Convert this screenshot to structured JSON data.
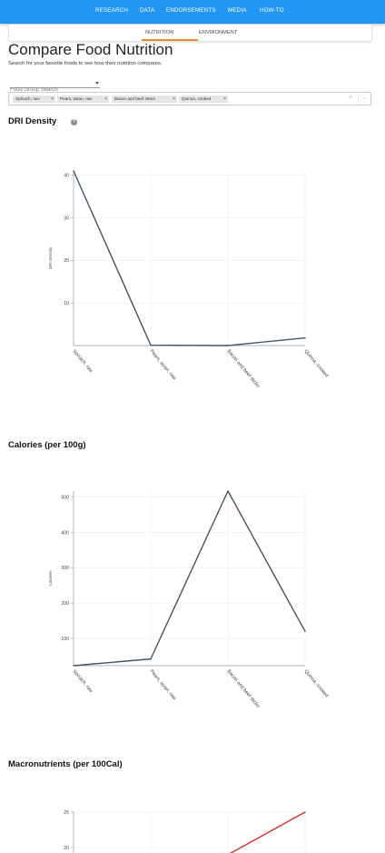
{
  "nav": {
    "links": [
      "RESEARCH",
      "DATA",
      "ENDORSEMENTS",
      "MEDIA",
      "HOW-TO"
    ],
    "bg_color": "#2196f3"
  },
  "tabs": {
    "items": [
      "NUTRITION",
      "ENVIRONMENT"
    ],
    "active": "NUTRITION",
    "active_color": "#e68a2e"
  },
  "header": {
    "title": "Compare Food Nutrition",
    "subtitle": "Search for your favorite foods to see how their nutrition compares."
  },
  "food_group_search": {
    "placeholder": "Food Group Search"
  },
  "selected_foods": {
    "chips": [
      "Spinach, raw",
      "Pears, asian, raw",
      "Bacon and beef sticks",
      "Quinoa, cooked"
    ],
    "remove_glyph": "×",
    "clear_glyph": "×",
    "dropdown_glyph": "⌄"
  },
  "sections": {
    "dri_density": {
      "heading": "DRI Density",
      "help_icon": "?"
    },
    "calories": {
      "heading": "Calories (per 100g)"
    },
    "macronutrients": {
      "heading": "Macronutrients (per 100Cal)"
    }
  },
  "chart_data": [
    {
      "type": "line",
      "categories": [
        "Spinach, raw",
        "Pears, asian, raw",
        "Bacon and  beef sticks",
        "Quinoa, cooked"
      ],
      "series": [
        {
          "values": [
            41,
            0.1,
            0,
            1.8
          ]
        }
      ],
      "title": "",
      "xlabel": "",
      "ylabel": "DRI Density",
      "yticks": [
        10,
        20,
        30,
        40
      ],
      "ylim": [
        0,
        41
      ],
      "line_color": "#415564",
      "grid": true
    },
    {
      "type": "line",
      "categories": [
        "Spinach, raw",
        "Pears, asian, raw",
        "Bacon and  beef sticks",
        "Quinoa, cooked"
      ],
      "series": [
        {
          "values": [
            23,
            42,
            517,
            120
          ]
        }
      ],
      "title": "",
      "xlabel": "",
      "ylabel": "Calories",
      "yticks": [
        100,
        200,
        300,
        400,
        500
      ],
      "ylim": [
        23,
        517
      ],
      "line_color": "#415564",
      "grid": true
    },
    {
      "type": "line",
      "categories": [
        "Spinach, raw",
        "Pears, asian, raw",
        "Bacon and  beef sticks",
        "Quinoa, cooked"
      ],
      "series": [
        {
          "values": [
            null,
            null,
            19,
            25
          ]
        }
      ],
      "title": "",
      "xlabel": "",
      "ylabel": "",
      "yticks": [
        20,
        25
      ],
      "ylim": [
        15,
        25
      ],
      "line_color": "#d0312d",
      "grid": true
    }
  ]
}
